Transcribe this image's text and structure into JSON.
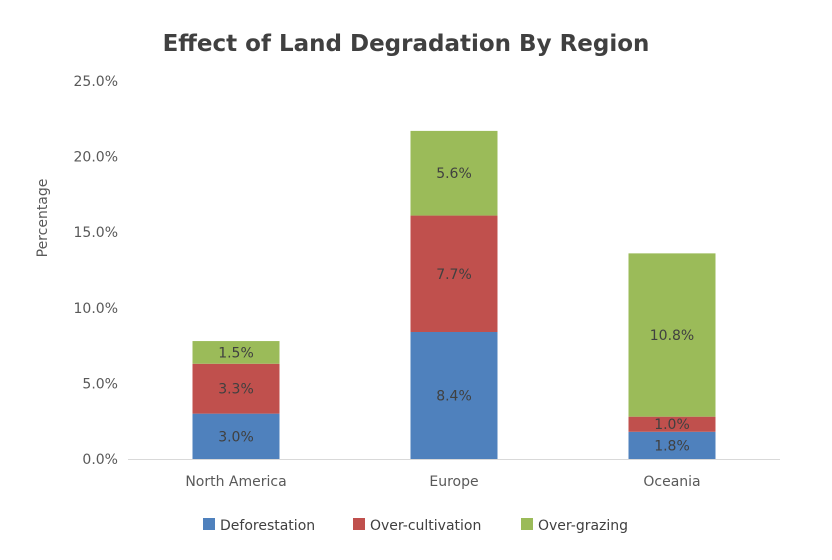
{
  "chart_data": {
    "type": "bar",
    "stacked": true,
    "title": "Effect of Land Degradation By Region",
    "xlabel": "",
    "ylabel": "Percentage",
    "ylim": [
      0,
      25
    ],
    "y_ticks": [
      "0.0%",
      "5.0%",
      "10.0%",
      "15.0%",
      "20.0%",
      "25.0%"
    ],
    "grid": false,
    "legend_position": "bottom",
    "categories": [
      "North America",
      "Europe",
      "Oceania"
    ],
    "series": [
      {
        "name": "Deforestation",
        "color": "#4f81bd",
        "values": [
          3.0,
          8.4,
          1.8
        ],
        "labels": [
          "3.0%",
          "8.4%",
          "1.8%"
        ]
      },
      {
        "name": "Over-cultivation",
        "color": "#c0504d",
        "values": [
          3.3,
          7.7,
          1.0
        ],
        "labels": [
          "3.3%",
          "7.7%",
          "1.0%"
        ]
      },
      {
        "name": "Over-grazing",
        "color": "#9bbb59",
        "values": [
          1.5,
          5.6,
          10.8
        ],
        "labels": [
          "1.5%",
          "5.6%",
          "10.8%"
        ]
      }
    ]
  }
}
